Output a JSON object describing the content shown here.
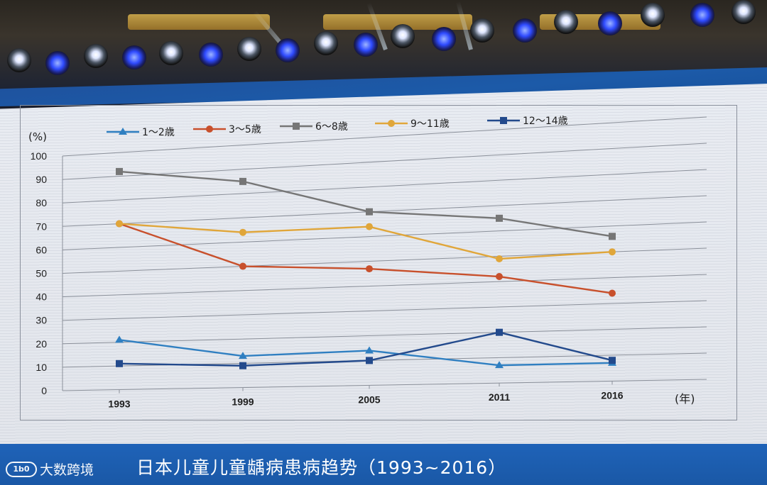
{
  "chart_data": {
    "type": "line",
    "ylabel": "(%)",
    "xlabel": "(年)",
    "x": [
      "1993",
      "1999",
      "2005",
      "2011",
      "2016"
    ],
    "ylim": [
      0,
      100
    ],
    "yticks": [
      0,
      10,
      20,
      30,
      40,
      50,
      60,
      70,
      80,
      90,
      100
    ],
    "grid": true,
    "legend": "top",
    "series": [
      {
        "name": "1～2歳",
        "color": "#2f7fc1",
        "marker": "triangle",
        "values": [
          21,
          13,
          14,
          7,
          7
        ]
      },
      {
        "name": "3～5歳",
        "color": "#c8502c",
        "marker": "circle",
        "values": [
          70,
          50,
          47,
          42,
          34
        ]
      },
      {
        "name": "6～8歳",
        "color": "#767676",
        "marker": "square",
        "values": [
          92,
          85,
          70,
          65,
          56
        ]
      },
      {
        "name": "9～11歳",
        "color": "#e0a63a",
        "marker": "circle",
        "values": [
          70,
          64,
          64,
          49,
          50
        ]
      },
      {
        "name": "12～14歳",
        "color": "#234a8c",
        "marker": "square",
        "values": [
          11,
          9,
          10,
          20,
          8
        ]
      }
    ]
  },
  "footer": {
    "title": "日本儿童儿童龋病患病趋势（1993~2016）",
    "watermark_logo": "1b0",
    "watermark_text": "大数跨境"
  }
}
